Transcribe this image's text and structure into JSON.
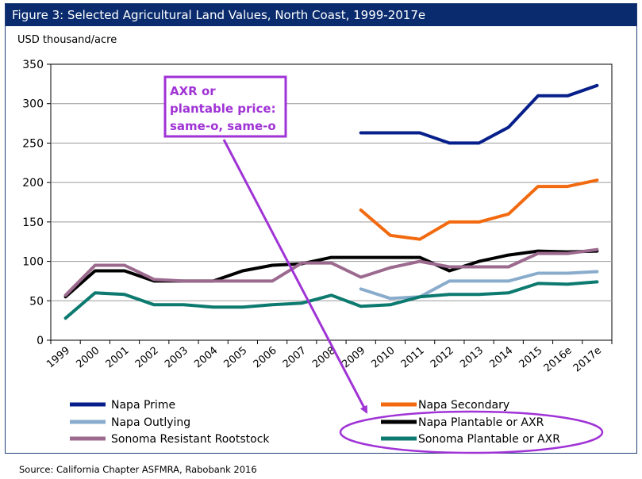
{
  "figure_title": "Figure 3: Selected Agricultural Land Values, North Coast, 1999-2017e",
  "source": "Source: California Chapter ASFMRA, Rabobank 2016",
  "annotation": {
    "lines": [
      "AXR or",
      "plantable price:",
      "same-o, same-o"
    ],
    "color": "#a033d6"
  },
  "chart_data": {
    "type": "line",
    "title": "Figure 3: Selected Agricultural Land Values, North Coast, 1999-2017e",
    "ylabel": "USD thousand/acre",
    "xlabel": "",
    "ylim": [
      0,
      350
    ],
    "yticks": [
      0,
      50,
      100,
      150,
      200,
      250,
      300,
      350
    ],
    "grid": true,
    "categories": [
      "1999",
      "2000",
      "2001",
      "2002",
      "2003",
      "2004",
      "2005",
      "2006",
      "2007",
      "2008",
      "2009",
      "2010",
      "2011",
      "2012",
      "2013",
      "2014",
      "2015",
      "2016e",
      "2017e"
    ],
    "series": [
      {
        "name": "Napa Prime",
        "color": "#071f8a",
        "values": [
          null,
          null,
          null,
          null,
          null,
          null,
          null,
          null,
          null,
          null,
          263,
          263,
          263,
          250,
          250,
          270,
          310,
          310,
          323
        ]
      },
      {
        "name": "Napa Secondary",
        "color": "#f26a10",
        "values": [
          null,
          null,
          null,
          null,
          null,
          null,
          null,
          null,
          null,
          null,
          165,
          133,
          128,
          150,
          150,
          160,
          195,
          195,
          203
        ]
      },
      {
        "name": "Napa Outlying",
        "color": "#8aaccc",
        "values": [
          null,
          null,
          null,
          null,
          null,
          null,
          null,
          null,
          null,
          null,
          65,
          53,
          55,
          75,
          75,
          75,
          85,
          85,
          87
        ]
      },
      {
        "name": "Napa Plantable or AXR",
        "color": "#000000",
        "values": [
          55,
          88,
          88,
          75,
          75,
          75,
          88,
          95,
          97,
          105,
          105,
          105,
          105,
          88,
          100,
          108,
          113,
          112,
          113
        ]
      },
      {
        "name": "Sonoma Resistant Rootstock",
        "color": "#9b6a8e",
        "values": [
          57,
          95,
          95,
          77,
          75,
          75,
          75,
          75,
          98,
          98,
          80,
          92,
          100,
          93,
          93,
          93,
          110,
          110,
          115
        ]
      },
      {
        "name": "Sonoma Plantable or AXR",
        "color": "#0d7a70",
        "values": [
          28,
          60,
          58,
          45,
          45,
          42,
          42,
          45,
          47,
          57,
          43,
          45,
          55,
          58,
          58,
          60,
          72,
          71,
          74
        ]
      }
    ],
    "legend_position": "bottom"
  }
}
